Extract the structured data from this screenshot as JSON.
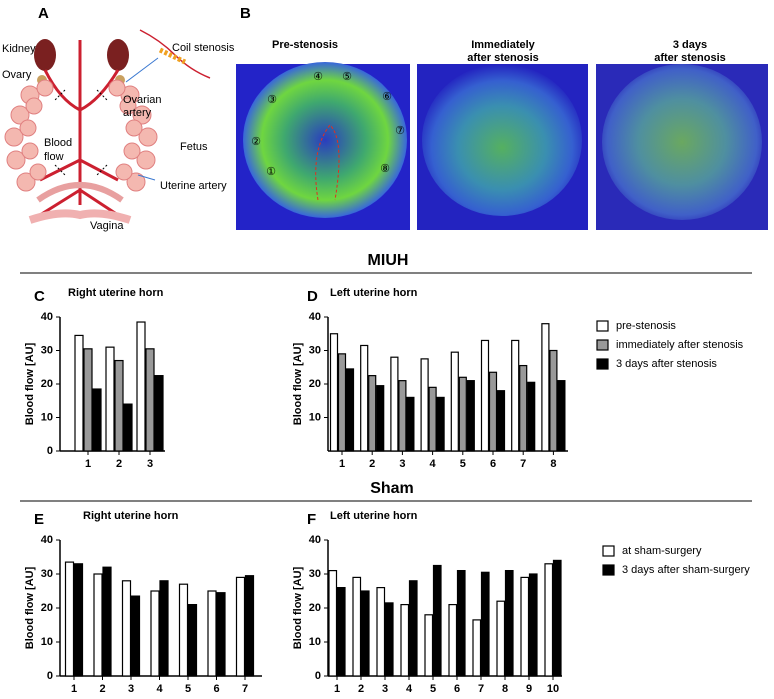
{
  "panel_a": {
    "label": "A",
    "kidney": "Kidney",
    "ovary": "Ovary",
    "coil": "Coil stenosis",
    "ovarian_artery": [
      "Ovarian",
      "artery"
    ],
    "blood_flow": [
      "Blood",
      "flow"
    ],
    "fetus": "Fetus",
    "uterine_artery": "Uterine artery",
    "vagina": "Vagina"
  },
  "panel_b": {
    "label": "B",
    "titles": [
      [
        "Pre-stenosis"
      ],
      [
        "Immediately",
        "after stenosis"
      ],
      [
        "3 days",
        "after stenosis"
      ]
    ],
    "positions": [
      "①",
      "②",
      "③",
      "④",
      "⑤",
      "⑥",
      "⑦",
      "⑧"
    ]
  },
  "sections": [
    "MIUH",
    "Sham"
  ],
  "chart_data": [
    {
      "type": "bar",
      "panel": "C",
      "title": "Right uterine horn",
      "y_label": "Blood flow [AU]",
      "categories": [
        "1",
        "2",
        "3"
      ],
      "series": [
        {
          "color": "#ffffff",
          "values": [
            34.5,
            31,
            38.5
          ]
        },
        {
          "color": "#999999",
          "values": [
            30.5,
            27,
            30.5
          ]
        },
        {
          "color": "#000000",
          "values": [
            18.5,
            14,
            22.5
          ]
        }
      ],
      "ylim": [
        0,
        40
      ],
      "yticks": [
        0,
        10,
        20,
        30,
        40
      ]
    },
    {
      "type": "bar",
      "panel": "D",
      "title": "Left uterine horn",
      "y_label": "Blood flow [AU]",
      "categories": [
        "1",
        "2",
        "3",
        "4",
        "5",
        "6",
        "7",
        "8"
      ],
      "series": [
        {
          "name": "pre-stenosis",
          "color": "#ffffff",
          "values": [
            35,
            31.5,
            28,
            27.5,
            29.5,
            33,
            33,
            38
          ]
        },
        {
          "name": "immediately after stenosis",
          "color": "#999999",
          "values": [
            29,
            22.5,
            21,
            19,
            22,
            23.5,
            25.5,
            30
          ]
        },
        {
          "name": "3 days after stenosis",
          "color": "#000000",
          "values": [
            24.5,
            19.5,
            16,
            16,
            21,
            18,
            20.5,
            21
          ]
        }
      ],
      "ylim": [
        0,
        40
      ],
      "yticks": [
        10,
        20,
        30,
        40
      ]
    },
    {
      "type": "bar",
      "panel": "E",
      "title": "Right uterine horn",
      "y_label": "Blood flow [AU]",
      "categories": [
        "1",
        "2",
        "3",
        "4",
        "5",
        "6",
        "7"
      ],
      "series": [
        {
          "color": "#ffffff",
          "values": [
            33.5,
            30,
            28,
            25,
            27,
            25,
            29
          ]
        },
        {
          "color": "#000000",
          "values": [
            33,
            32,
            23.5,
            28,
            21,
            24.5,
            29.5
          ]
        }
      ],
      "ylim": [
        0,
        40
      ],
      "yticks": [
        0,
        10,
        20,
        30,
        40
      ]
    },
    {
      "type": "bar",
      "panel": "F",
      "title": "Left uterine horn",
      "y_label": "Blood flow [AU]",
      "categories": [
        "1",
        "2",
        "3",
        "4",
        "5",
        "6",
        "7",
        "8",
        "9",
        "10"
      ],
      "series": [
        {
          "name": "at sham-surgery",
          "color": "#ffffff",
          "values": [
            31,
            29,
            26,
            21,
            18,
            21,
            16.5,
            22,
            29,
            33
          ]
        },
        {
          "name": "3 days after sham-surgery",
          "color": "#000000",
          "values": [
            26,
            25,
            21.5,
            28,
            32.5,
            31,
            30.5,
            31,
            30,
            34
          ]
        }
      ],
      "ylim": [
        0,
        40
      ],
      "yticks": [
        0,
        10,
        20,
        30,
        40
      ]
    }
  ]
}
